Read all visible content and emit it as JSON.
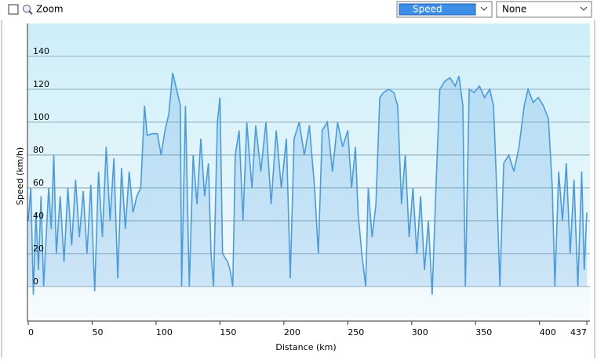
{
  "toolbar": {
    "zoom_label": "Zoom",
    "primary_select": "Speed",
    "secondary_select": "None"
  },
  "chart_data": {
    "type": "area",
    "xlabel": "Distance  (km)",
    "ylabel": "Speed (km/h)",
    "xlim": [
      0,
      437
    ],
    "ylim": [
      -21,
      160
    ],
    "xticks": [
      0,
      50,
      100,
      150,
      200,
      250,
      300,
      350,
      400,
      437
    ],
    "yticks": [
      0,
      20,
      40,
      60,
      80,
      100,
      120,
      140
    ],
    "grid": true,
    "series": [
      {
        "name": "Speed",
        "color": "#4a9be0",
        "x": [
          0,
          2,
          4,
          6,
          8,
          10,
          12,
          14,
          16,
          18,
          20,
          22,
          25,
          28,
          31,
          34,
          37,
          40,
          43,
          46,
          49,
          52,
          55,
          58,
          61,
          64,
          67,
          70,
          73,
          76,
          79,
          82,
          85,
          88,
          91,
          93,
          97,
          101,
          104,
          107,
          110,
          113,
          116,
          119,
          120,
          123,
          126,
          129,
          132,
          135,
          138,
          141,
          143,
          145,
          148,
          150,
          152,
          156,
          158,
          160,
          162,
          165,
          168,
          171,
          175,
          178,
          182,
          186,
          190,
          194,
          198,
          202,
          205,
          208,
          212,
          216,
          220,
          224,
          227,
          230,
          234,
          238,
          242,
          246,
          250,
          253,
          256,
          258,
          261,
          264,
          266,
          269,
          272,
          275,
          278,
          282,
          286,
          289,
          292,
          295,
          298,
          301,
          304,
          307,
          310,
          313,
          316,
          319,
          322,
          326,
          330,
          334,
          337,
          340,
          342,
          345,
          349,
          353,
          357,
          361,
          364,
          367,
          369,
          372,
          376,
          380,
          384,
          388,
          391,
          395,
          399,
          403,
          407,
          410,
          412,
          415,
          418,
          421,
          424,
          427,
          430,
          433,
          435,
          437
        ],
        "values": [
          40,
          60,
          -5,
          45,
          10,
          55,
          0,
          30,
          60,
          35,
          80,
          20,
          55,
          15,
          60,
          25,
          65,
          30,
          58,
          20,
          62,
          -3,
          70,
          30,
          85,
          40,
          78,
          5,
          72,
          35,
          70,
          45,
          55,
          60,
          110,
          92,
          93,
          93,
          80,
          95,
          105,
          130,
          120,
          110,
          0,
          110,
          0,
          80,
          50,
          90,
          55,
          75,
          20,
          0,
          100,
          115,
          20,
          15,
          10,
          0,
          80,
          95,
          40,
          100,
          60,
          98,
          70,
          100,
          50,
          95,
          60,
          90,
          5,
          90,
          100,
          80,
          98,
          60,
          20,
          95,
          100,
          70,
          100,
          85,
          95,
          60,
          85,
          45,
          20,
          0,
          60,
          30,
          50,
          115,
          118,
          120,
          118,
          110,
          50,
          80,
          30,
          60,
          20,
          55,
          10,
          40,
          -5,
          60,
          120,
          125,
          127,
          122,
          128,
          110,
          0,
          120,
          118,
          122,
          115,
          120,
          110,
          50,
          0,
          75,
          80,
          70,
          85,
          110,
          120,
          112,
          115,
          110,
          102,
          60,
          0,
          70,
          40,
          75,
          20,
          65,
          0,
          70,
          10,
          45
        ]
      }
    ]
  }
}
